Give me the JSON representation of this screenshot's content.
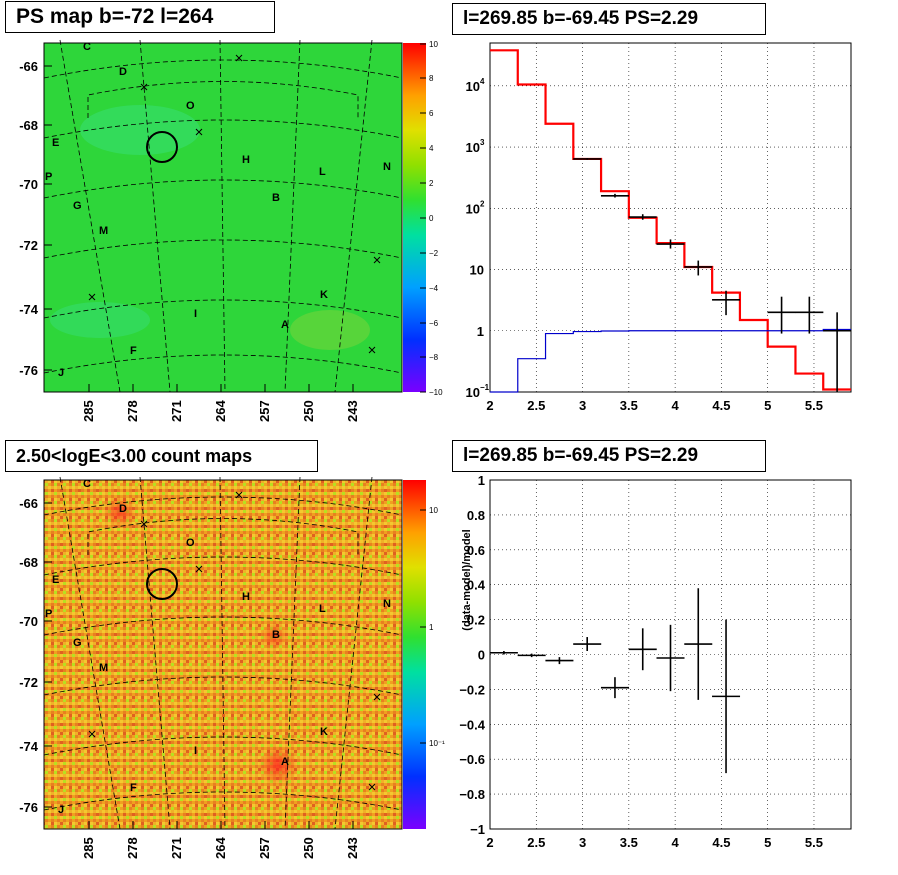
{
  "titles": {
    "top_left": "PS map b=-72 l=264",
    "top_right": "l=269.85 b=-69.45 PS=2.29",
    "bottom_left": "2.50<logE<3.00 count maps",
    "bottom_right": "l=269.85 b=-69.45 PS=2.29"
  },
  "maps": {
    "y_ticks": [
      "-66",
      "-68",
      "-70",
      "-72",
      "-74",
      "-76"
    ],
    "x_ticks": [
      "285",
      "278",
      "271",
      "264",
      "257",
      "250",
      "243"
    ],
    "source_labels": [
      {
        "t": "C"
      },
      {
        "t": "D"
      },
      {
        "t": "O"
      },
      {
        "t": "E"
      },
      {
        "t": "H"
      },
      {
        "t": "L"
      },
      {
        "t": "N"
      },
      {
        "t": "P"
      },
      {
        "t": "B"
      },
      {
        "t": "G"
      },
      {
        "t": "M"
      },
      {
        "t": "K"
      },
      {
        "t": "I"
      },
      {
        "t": "A"
      },
      {
        "t": "F"
      },
      {
        "t": "J"
      }
    ],
    "ps_colorbar_ticks": [
      "10",
      "8",
      "6",
      "4",
      "2",
      "0",
      "−2",
      "−4",
      "−6",
      "−8",
      "−10"
    ],
    "count_colorbar_ticks": [
      "10",
      "1",
      "10⁻¹"
    ]
  },
  "chart_data": [
    {
      "type": "line",
      "panel": "spectrum",
      "x_scale": "linear",
      "y_scale": "log",
      "xlim": [
        2,
        5.9
      ],
      "ylim": [
        0.1,
        50000
      ],
      "grid": true,
      "x_ticks": [
        "2",
        "2.5",
        "3",
        "3.5",
        "4",
        "4.5",
        "5",
        "5.5"
      ],
      "y_ticks": [
        {
          "label": "10",
          "sup": "4"
        },
        {
          "label": "10",
          "sup": "3"
        },
        {
          "label": "10",
          "sup": "2"
        },
        {
          "label": "10",
          "sup": ""
        },
        {
          "label": "1",
          "sup": ""
        },
        {
          "label": "10",
          "sup": "−1"
        }
      ],
      "bin_edges": [
        2.0,
        2.3,
        2.6,
        2.9,
        3.2,
        3.5,
        3.8,
        4.1,
        4.4,
        4.7,
        5.0,
        5.3,
        5.6,
        5.9
      ],
      "series": [
        {
          "color": "#ff0000",
          "values": [
            38000,
            10500,
            2400,
            640,
            190,
            70,
            27,
            11,
            4.2,
            1.5,
            0.55,
            0.2,
            0.11
          ]
        },
        {
          "color": "#0000cc",
          "values": [
            0.1,
            0.35,
            0.9,
            0.97,
            0.99,
            1.0,
            1.0,
            1.0,
            1.0,
            1.0,
            1.0,
            1.0,
            1.05
          ]
        }
      ],
      "points": [
        {
          "x": 3.05,
          "y": 640,
          "ylo": 620,
          "yhi": 660
        },
        {
          "x": 3.35,
          "y": 160,
          "ylo": 150,
          "yhi": 172
        },
        {
          "x": 3.65,
          "y": 72,
          "ylo": 65,
          "yhi": 80
        },
        {
          "x": 3.95,
          "y": 26,
          "ylo": 22,
          "yhi": 31
        },
        {
          "x": 4.25,
          "y": 11,
          "ylo": 8,
          "yhi": 14
        },
        {
          "x": 4.55,
          "y": 3.2,
          "ylo": 1.8,
          "yhi": 4.5
        },
        {
          "x": 5.15,
          "y": 2.0,
          "ylo": 0.9,
          "yhi": 3.6
        },
        {
          "x": 5.45,
          "y": 2.0,
          "ylo": 0.9,
          "yhi": 3.6
        },
        {
          "x": 5.75,
          "y": 1.0,
          "ylo": 0.1,
          "yhi": 2.0
        }
      ]
    },
    {
      "type": "scatter",
      "panel": "residuals",
      "xlim": [
        2,
        5.9
      ],
      "ylim": [
        -1,
        1
      ],
      "grid": true,
      "ylabel": "(data-model)/model",
      "x_ticks": [
        "2",
        "2.5",
        "3",
        "3.5",
        "4",
        "4.5",
        "5",
        "5.5"
      ],
      "y_ticks": [
        "1",
        "0.8",
        "0.6",
        "0.4",
        "0.2",
        "0",
        "−0.2",
        "−0.4",
        "−0.6",
        "−0.8",
        "−1"
      ],
      "points": [
        {
          "x": 2.15,
          "y": 0.01,
          "err": 0.01
        },
        {
          "x": 2.45,
          "y": -0.005,
          "err": 0.01
        },
        {
          "x": 2.75,
          "y": -0.035,
          "err": 0.02
        },
        {
          "x": 3.05,
          "y": 0.06,
          "err": 0.04
        },
        {
          "x": 3.35,
          "y": -0.19,
          "err": 0.06
        },
        {
          "x": 3.65,
          "y": 0.03,
          "err": 0.12
        },
        {
          "x": 3.95,
          "y": -0.02,
          "err": 0.19
        },
        {
          "x": 4.25,
          "y": 0.06,
          "err": 0.32
        },
        {
          "x": 4.55,
          "y": -0.24,
          "err": 0.44
        }
      ]
    }
  ]
}
